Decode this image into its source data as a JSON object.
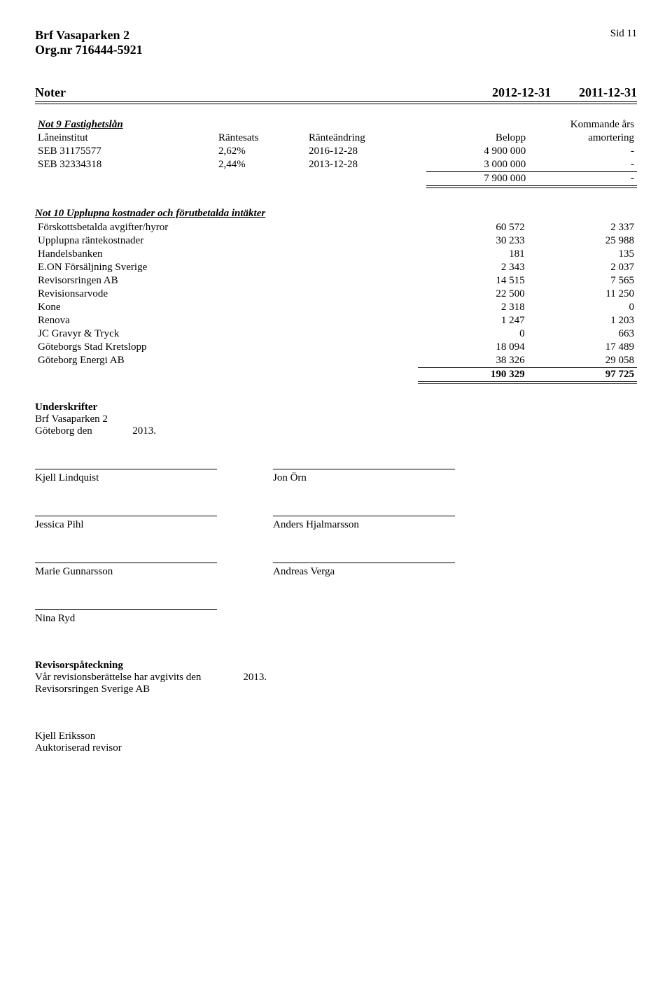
{
  "header": {
    "org_name": "Brf Vasaparken 2",
    "org_nr_label": "Org.nr",
    "org_nr": "716444-5921",
    "page_label": "Sid 11"
  },
  "noter": {
    "title": "Noter",
    "date1": "2012-12-31",
    "date2": "2011-12-31"
  },
  "not9": {
    "title": "Not 9 Fastighetslån",
    "cols": {
      "laneinstitut": "Låneinstitut",
      "rantesats": "Räntesats",
      "ranteandring": "Ränteändring",
      "belopp": "Belopp",
      "kommande": "Kommande års",
      "amortering": "amortering"
    },
    "rows": [
      {
        "inst": "SEB 31175577",
        "rate": "2,62%",
        "change": "2016-12-28",
        "belopp": "4 900 000",
        "amort": "-"
      },
      {
        "inst": "SEB 32334318",
        "rate": "2,44%",
        "change": "2013-12-28",
        "belopp": "3 000 000",
        "amort": "-"
      }
    ],
    "total": {
      "belopp": "7 900 000",
      "amort": "-"
    }
  },
  "not10": {
    "title": "Not 10 Upplupna kostnader och förutbetalda intäkter",
    "rows": [
      {
        "label": "Förskottsbetalda avgifter/hyror",
        "c1": "60 572",
        "c2": "2 337"
      },
      {
        "label": "Upplupna räntekostnader",
        "c1": "30 233",
        "c2": "25 988"
      },
      {
        "label": "Handelsbanken",
        "c1": "181",
        "c2": "135"
      },
      {
        "label": "E.ON Försäljning Sverige",
        "c1": "2 343",
        "c2": "2 037"
      },
      {
        "label": "Revisorsringen AB",
        "c1": "14 515",
        "c2": "7 565"
      },
      {
        "label": "Revisionsarvode",
        "c1": "22 500",
        "c2": "11 250"
      },
      {
        "label": "Kone",
        "c1": "2 318",
        "c2": "0"
      },
      {
        "label": "Renova",
        "c1": "1 247",
        "c2": "1 203"
      },
      {
        "label": "JC Gravyr & Tryck",
        "c1": "0",
        "c2": "663"
      },
      {
        "label": "Göteborgs Stad Kretslopp",
        "c1": "18 094",
        "c2": "17 489"
      },
      {
        "label": "Göteborg Energi AB",
        "c1": "38 326",
        "c2": "29 058"
      }
    ],
    "total": {
      "c1": "190 329",
      "c2": "97 725"
    }
  },
  "underskrifter": {
    "title": "Underskrifter",
    "line1": "Brf Vasaparken 2",
    "line2a": "Göteborg den",
    "line2b": "2013.",
    "signers": [
      [
        "Kjell Lindquist",
        "Jon Örn"
      ],
      [
        "Jessica Pihl",
        "Anders Hjalmarsson"
      ],
      [
        "Marie Gunnarsson",
        "Andreas Verga"
      ],
      [
        "Nina Ryd",
        ""
      ]
    ]
  },
  "revisor": {
    "title": "Revisorspåteckning",
    "line1a": "Vår revisionsberättelse har avgivits den",
    "line1b": "2013.",
    "line2": "Revisorsringen  Sverige AB",
    "auth_name": "Kjell Eriksson",
    "auth_title": "Auktoriserad revisor"
  }
}
